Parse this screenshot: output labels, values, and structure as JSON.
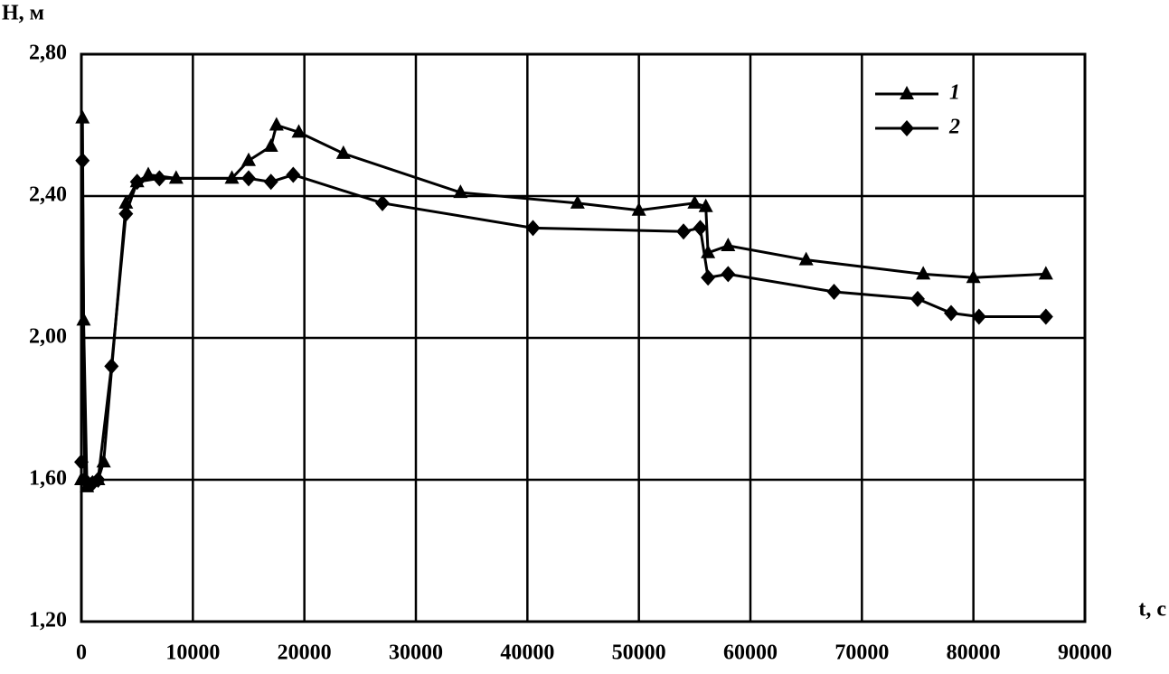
{
  "chart_data": {
    "type": "line",
    "y_label": "H, м",
    "x_label": "t, c",
    "xlim": [
      0,
      90000
    ],
    "ylim": [
      1.2,
      2.8
    ],
    "xticks": [
      0,
      10000,
      20000,
      30000,
      40000,
      50000,
      60000,
      70000,
      80000,
      90000
    ],
    "yticks": [
      {
        "value": 1.2,
        "label": "1,20"
      },
      {
        "value": 1.6,
        "label": "1,60"
      },
      {
        "value": 2.0,
        "label": "2,00"
      },
      {
        "value": 2.4,
        "label": "2,40"
      },
      {
        "value": 2.8,
        "label": "2,80"
      }
    ],
    "grid": true,
    "legend": "upper right",
    "series": [
      {
        "name": "1",
        "color": "#000000",
        "marker": "triangle",
        "x": [
          0,
          100,
          200,
          500,
          1500,
          2000,
          4000,
          5000,
          6000,
          8500,
          13500,
          15000,
          17000,
          17500,
          19500,
          23500,
          34000,
          44500,
          50000,
          55000,
          56000,
          56200,
          58000,
          65000,
          75500,
          80000,
          86500
        ],
        "values": [
          1.6,
          2.62,
          2.05,
          1.58,
          1.6,
          1.65,
          2.38,
          2.44,
          2.46,
          2.45,
          2.45,
          2.5,
          2.54,
          2.6,
          2.58,
          2.52,
          2.41,
          2.38,
          2.36,
          2.38,
          2.37,
          2.24,
          2.26,
          2.22,
          2.18,
          2.17,
          2.18
        ]
      },
      {
        "name": "2",
        "color": "#000000",
        "marker": "diamond",
        "x": [
          0,
          100,
          300,
          1000,
          1500,
          2700,
          4000,
          5000,
          7000,
          15000,
          17000,
          19000,
          27000,
          40500,
          54000,
          55500,
          56200,
          58000,
          67500,
          75000,
          78000,
          80500,
          86500
        ],
        "values": [
          1.65,
          2.5,
          1.6,
          1.59,
          1.6,
          1.92,
          2.35,
          2.44,
          2.45,
          2.45,
          2.44,
          2.46,
          2.38,
          2.31,
          2.3,
          2.31,
          2.17,
          2.18,
          2.13,
          2.11,
          2.07,
          2.06,
          2.06
        ]
      }
    ]
  }
}
